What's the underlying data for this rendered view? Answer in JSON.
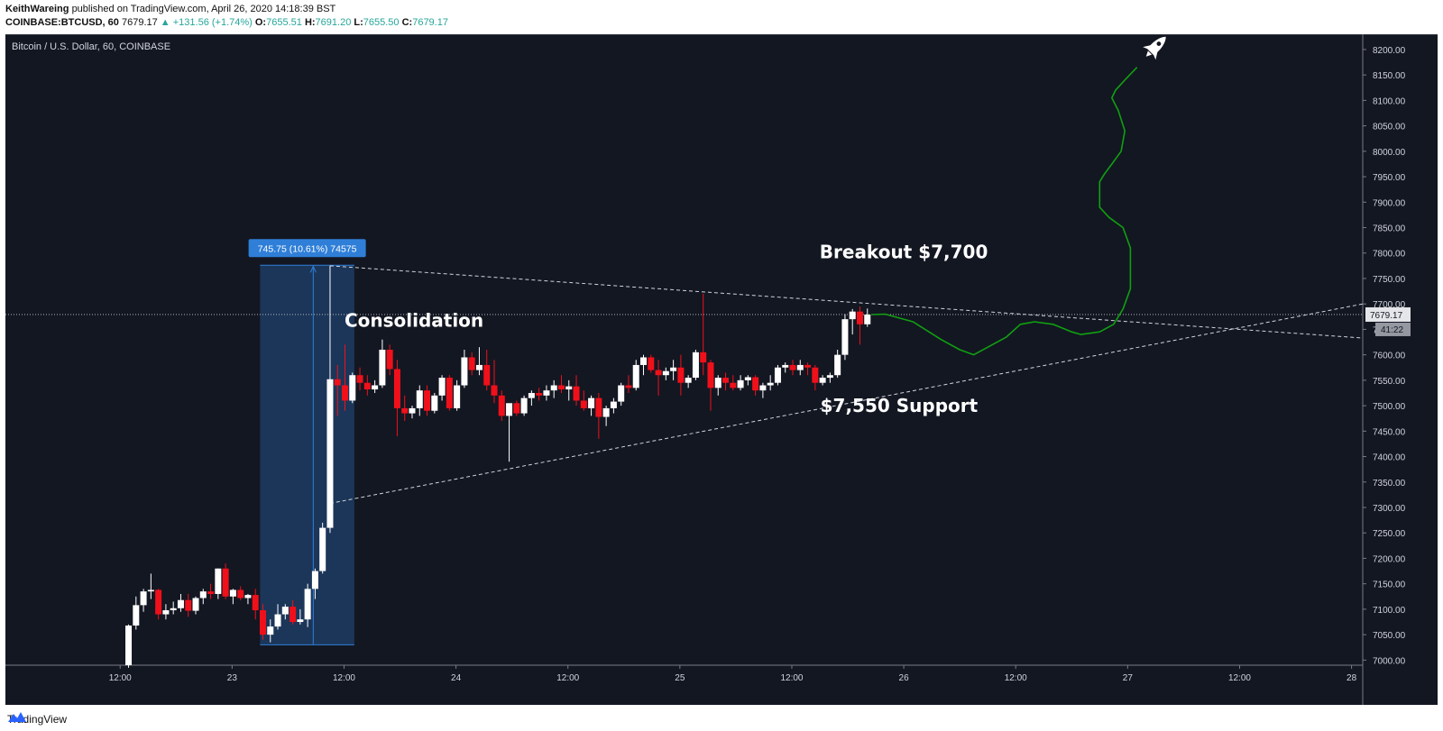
{
  "header": {
    "author": "KeithWareing",
    "published_text": "published on TradingView.com, April 26, 2020 14:18:39 BST",
    "symbol_line": {
      "symbol": "COINBASE:BTCUSD, 60",
      "last": "7679.17",
      "change": "▲ +131.56 (+1.74%)",
      "o_label": "O:",
      "o": "7655.51",
      "h_label": "H:",
      "h": "7691.20",
      "l_label": "L:",
      "l": "7655.50",
      "c_label": "C:",
      "c": "7679.17"
    }
  },
  "chart_title": "Bitcoin / U.S. Dollar, 60, COINBASE",
  "footer": {
    "brand": "TradingView"
  },
  "colors": {
    "background": "#131722",
    "up": "#ffffff",
    "down": "#f0101a",
    "projection": "#10a010",
    "measure_box": "#1e3a5f",
    "measure_label": "#2f7fd8"
  },
  "chart_data": {
    "type": "candlestick",
    "yaxis": {
      "ticks": [
        "8200.00",
        "8150.00",
        "8100.00",
        "8050.00",
        "8000.00",
        "7950.00",
        "7900.00",
        "7850.00",
        "7800.00",
        "7750.00",
        "7700.00",
        "7650.00",
        "7600.00",
        "7550.00",
        "7500.00",
        "7450.00",
        "7400.00",
        "7350.00",
        "7300.00",
        "7250.00",
        "7200.00",
        "7150.00",
        "7100.00",
        "7050.00",
        "7000.00"
      ],
      "range": [
        6990,
        8230
      ]
    },
    "xaxis": {
      "ticks": [
        "12:00",
        "23",
        "12:00",
        "24",
        "12:00",
        "25",
        "12:00",
        "26",
        "12:00",
        "27",
        "12:00",
        "28"
      ],
      "tick_hours": [
        0,
        12,
        24,
        36,
        48,
        60,
        72,
        84,
        96,
        108,
        120,
        132
      ],
      "range_hours": [
        -12.3,
        133.2
      ]
    },
    "price_label": "7679.17",
    "countdown_label": "41:22",
    "candles": [
      {
        "t": 0.9,
        "o": 6990,
        "h": 7070,
        "l": 6985,
        "c": 7068
      },
      {
        "t": 1.7,
        "o": 7068,
        "h": 7125,
        "l": 7060,
        "c": 7108
      },
      {
        "t": 2.5,
        "o": 7108,
        "h": 7140,
        "l": 7095,
        "c": 7135
      },
      {
        "t": 3.3,
        "o": 7135,
        "h": 7170,
        "l": 7120,
        "c": 7138
      },
      {
        "t": 4.1,
        "o": 7138,
        "h": 7140,
        "l": 7080,
        "c": 7090
      },
      {
        "t": 4.9,
        "o": 7090,
        "h": 7110,
        "l": 7080,
        "c": 7098
      },
      {
        "t": 5.7,
        "o": 7098,
        "h": 7115,
        "l": 7090,
        "c": 7102
      },
      {
        "t": 6.5,
        "o": 7102,
        "h": 7130,
        "l": 7095,
        "c": 7118
      },
      {
        "t": 7.3,
        "o": 7118,
        "h": 7130,
        "l": 7085,
        "c": 7097
      },
      {
        "t": 8.1,
        "o": 7097,
        "h": 7125,
        "l": 7090,
        "c": 7122
      },
      {
        "t": 8.9,
        "o": 7122,
        "h": 7140,
        "l": 7110,
        "c": 7135
      },
      {
        "t": 9.7,
        "o": 7135,
        "h": 7150,
        "l": 7120,
        "c": 7130
      },
      {
        "t": 10.5,
        "o": 7130,
        "h": 7180,
        "l": 7120,
        "c": 7180
      },
      {
        "t": 11.3,
        "o": 7180,
        "h": 7190,
        "l": 7120,
        "c": 7125
      },
      {
        "t": 12.1,
        "o": 7125,
        "h": 7140,
        "l": 7110,
        "c": 7138
      },
      {
        "t": 12.9,
        "o": 7138,
        "h": 7145,
        "l": 7118,
        "c": 7122
      },
      {
        "t": 13.7,
        "o": 7122,
        "h": 7130,
        "l": 7110,
        "c": 7128
      },
      {
        "t": 14.5,
        "o": 7128,
        "h": 7140,
        "l": 7080,
        "c": 7098
      },
      {
        "t": 15.3,
        "o": 7098,
        "h": 7110,
        "l": 7040,
        "c": 7050
      },
      {
        "t": 16.1,
        "o": 7050,
        "h": 7080,
        "l": 7035,
        "c": 7066
      },
      {
        "t": 16.9,
        "o": 7066,
        "h": 7110,
        "l": 7060,
        "c": 7090
      },
      {
        "t": 17.7,
        "o": 7090,
        "h": 7110,
        "l": 7080,
        "c": 7105
      },
      {
        "t": 18.5,
        "o": 7105,
        "h": 7118,
        "l": 7070,
        "c": 7075
      },
      {
        "t": 19.3,
        "o": 7075,
        "h": 7100,
        "l": 7070,
        "c": 7080
      },
      {
        "t": 20.1,
        "o": 7080,
        "h": 7150,
        "l": 7065,
        "c": 7140
      },
      {
        "t": 20.9,
        "o": 7140,
        "h": 7180,
        "l": 7120,
        "c": 7175
      },
      {
        "t": 21.7,
        "o": 7175,
        "h": 7270,
        "l": 7170,
        "c": 7260
      },
      {
        "t": 22.5,
        "o": 7260,
        "h": 7775,
        "l": 7250,
        "c": 7552
      },
      {
        "t": 23.3,
        "o": 7552,
        "h": 7580,
        "l": 7480,
        "c": 7540
      },
      {
        "t": 24.1,
        "o": 7540,
        "h": 7620,
        "l": 7490,
        "c": 7510
      },
      {
        "t": 24.9,
        "o": 7510,
        "h": 7565,
        "l": 7505,
        "c": 7560
      },
      {
        "t": 25.7,
        "o": 7560,
        "h": 7575,
        "l": 7530,
        "c": 7545
      },
      {
        "t": 26.5,
        "o": 7545,
        "h": 7560,
        "l": 7520,
        "c": 7532
      },
      {
        "t": 27.3,
        "o": 7532,
        "h": 7550,
        "l": 7525,
        "c": 7540
      },
      {
        "t": 28.1,
        "o": 7540,
        "h": 7630,
        "l": 7535,
        "c": 7610
      },
      {
        "t": 28.9,
        "o": 7610,
        "h": 7620,
        "l": 7560,
        "c": 7572
      },
      {
        "t": 29.7,
        "o": 7572,
        "h": 7590,
        "l": 7440,
        "c": 7495
      },
      {
        "t": 30.5,
        "o": 7495,
        "h": 7520,
        "l": 7470,
        "c": 7485
      },
      {
        "t": 31.3,
        "o": 7485,
        "h": 7500,
        "l": 7475,
        "c": 7495
      },
      {
        "t": 32.1,
        "o": 7495,
        "h": 7540,
        "l": 7480,
        "c": 7530
      },
      {
        "t": 32.9,
        "o": 7530,
        "h": 7540,
        "l": 7480,
        "c": 7490
      },
      {
        "t": 33.7,
        "o": 7490,
        "h": 7525,
        "l": 7485,
        "c": 7520
      },
      {
        "t": 34.5,
        "o": 7520,
        "h": 7560,
        "l": 7510,
        "c": 7555
      },
      {
        "t": 35.3,
        "o": 7555,
        "h": 7560,
        "l": 7490,
        "c": 7495
      },
      {
        "t": 36.1,
        "o": 7495,
        "h": 7550,
        "l": 7490,
        "c": 7540
      },
      {
        "t": 36.9,
        "o": 7540,
        "h": 7610,
        "l": 7535,
        "c": 7595
      },
      {
        "t": 37.7,
        "o": 7595,
        "h": 7605,
        "l": 7560,
        "c": 7570
      },
      {
        "t": 38.5,
        "o": 7570,
        "h": 7615,
        "l": 7560,
        "c": 7580
      },
      {
        "t": 39.3,
        "o": 7580,
        "h": 7610,
        "l": 7530,
        "c": 7540
      },
      {
        "t": 40.1,
        "o": 7540,
        "h": 7590,
        "l": 7505,
        "c": 7520
      },
      {
        "t": 40.9,
        "o": 7520,
        "h": 7530,
        "l": 7470,
        "c": 7480
      },
      {
        "t": 41.7,
        "o": 7480,
        "h": 7500,
        "l": 7390,
        "c": 7505
      },
      {
        "t": 42.5,
        "o": 7505,
        "h": 7510,
        "l": 7480,
        "c": 7485
      },
      {
        "t": 43.3,
        "o": 7485,
        "h": 7520,
        "l": 7480,
        "c": 7515
      },
      {
        "t": 44.1,
        "o": 7515,
        "h": 7530,
        "l": 7500,
        "c": 7525
      },
      {
        "t": 44.9,
        "o": 7525,
        "h": 7535,
        "l": 7510,
        "c": 7520
      },
      {
        "t": 45.7,
        "o": 7520,
        "h": 7540,
        "l": 7510,
        "c": 7530
      },
      {
        "t": 46.5,
        "o": 7530,
        "h": 7550,
        "l": 7515,
        "c": 7540
      },
      {
        "t": 47.3,
        "o": 7540,
        "h": 7560,
        "l": 7525,
        "c": 7532
      },
      {
        "t": 48.1,
        "o": 7532,
        "h": 7550,
        "l": 7510,
        "c": 7538
      },
      {
        "t": 48.9,
        "o": 7538,
        "h": 7560,
        "l": 7500,
        "c": 7510
      },
      {
        "t": 49.7,
        "o": 7510,
        "h": 7530,
        "l": 7490,
        "c": 7495
      },
      {
        "t": 50.5,
        "o": 7495,
        "h": 7520,
        "l": 7480,
        "c": 7515
      },
      {
        "t": 51.3,
        "o": 7515,
        "h": 7525,
        "l": 7435,
        "c": 7478
      },
      {
        "t": 52.1,
        "o": 7478,
        "h": 7500,
        "l": 7460,
        "c": 7495
      },
      {
        "t": 52.9,
        "o": 7495,
        "h": 7515,
        "l": 7485,
        "c": 7508
      },
      {
        "t": 53.7,
        "o": 7508,
        "h": 7545,
        "l": 7500,
        "c": 7540
      },
      {
        "t": 54.5,
        "o": 7540,
        "h": 7560,
        "l": 7525,
        "c": 7535
      },
      {
        "t": 55.3,
        "o": 7535,
        "h": 7590,
        "l": 7530,
        "c": 7580
      },
      {
        "t": 56.1,
        "o": 7580,
        "h": 7600,
        "l": 7560,
        "c": 7595
      },
      {
        "t": 56.9,
        "o": 7595,
        "h": 7600,
        "l": 7565,
        "c": 7570
      },
      {
        "t": 57.7,
        "o": 7570,
        "h": 7590,
        "l": 7520,
        "c": 7560
      },
      {
        "t": 58.5,
        "o": 7560,
        "h": 7575,
        "l": 7550,
        "c": 7568
      },
      {
        "t": 59.3,
        "o": 7568,
        "h": 7590,
        "l": 7550,
        "c": 7575
      },
      {
        "t": 60.1,
        "o": 7575,
        "h": 7600,
        "l": 7520,
        "c": 7545
      },
      {
        "t": 60.9,
        "o": 7545,
        "h": 7560,
        "l": 7535,
        "c": 7555
      },
      {
        "t": 61.7,
        "o": 7555,
        "h": 7610,
        "l": 7550,
        "c": 7605
      },
      {
        "t": 62.5,
        "o": 7605,
        "h": 7720,
        "l": 7560,
        "c": 7585
      },
      {
        "t": 63.3,
        "o": 7585,
        "h": 7590,
        "l": 7490,
        "c": 7535
      },
      {
        "t": 64.1,
        "o": 7535,
        "h": 7560,
        "l": 7520,
        "c": 7555
      },
      {
        "t": 64.9,
        "o": 7555,
        "h": 7565,
        "l": 7530,
        "c": 7545
      },
      {
        "t": 65.7,
        "o": 7545,
        "h": 7560,
        "l": 7530,
        "c": 7535
      },
      {
        "t": 66.5,
        "o": 7535,
        "h": 7560,
        "l": 7530,
        "c": 7550
      },
      {
        "t": 67.3,
        "o": 7550,
        "h": 7560,
        "l": 7540,
        "c": 7556
      },
      {
        "t": 68.1,
        "o": 7556,
        "h": 7560,
        "l": 7520,
        "c": 7530
      },
      {
        "t": 68.9,
        "o": 7530,
        "h": 7545,
        "l": 7515,
        "c": 7540
      },
      {
        "t": 69.7,
        "o": 7540,
        "h": 7560,
        "l": 7530,
        "c": 7545
      },
      {
        "t": 70.5,
        "o": 7545,
        "h": 7580,
        "l": 7540,
        "c": 7575
      },
      {
        "t": 71.3,
        "o": 7575,
        "h": 7585,
        "l": 7565,
        "c": 7580
      },
      {
        "t": 72.1,
        "o": 7580,
        "h": 7590,
        "l": 7560,
        "c": 7570
      },
      {
        "t": 72.9,
        "o": 7570,
        "h": 7590,
        "l": 7560,
        "c": 7580
      },
      {
        "t": 73.7,
        "o": 7580,
        "h": 7585,
        "l": 7560,
        "c": 7575
      },
      {
        "t": 74.5,
        "o": 7575,
        "h": 7580,
        "l": 7530,
        "c": 7545
      },
      {
        "t": 75.3,
        "o": 7545,
        "h": 7560,
        "l": 7540,
        "c": 7555
      },
      {
        "t": 76.1,
        "o": 7555,
        "h": 7565,
        "l": 7545,
        "c": 7560
      },
      {
        "t": 76.9,
        "o": 7560,
        "h": 7610,
        "l": 7555,
        "c": 7600
      },
      {
        "t": 77.7,
        "o": 7600,
        "h": 7680,
        "l": 7590,
        "c": 7670
      },
      {
        "t": 78.5,
        "o": 7670,
        "h": 7690,
        "l": 7640,
        "c": 7685
      },
      {
        "t": 79.3,
        "o": 7685,
        "h": 7695,
        "l": 7620,
        "c": 7660
      },
      {
        "t": 80.1,
        "o": 7660,
        "h": 7691,
        "l": 7655,
        "c": 7679
      }
    ],
    "measure_tool": {
      "label": "745.75 (10.61%) 74575",
      "t_start": 15.0,
      "t_end": 25.1,
      "price_low": 7030,
      "price_high": 7776,
      "arrow_t": 20.7
    },
    "trendlines": [
      {
        "name": "resistance",
        "t1": 22.5,
        "p1": 7775,
        "t2": 133.2,
        "p2": 7633
      },
      {
        "name": "support",
        "t1": 22.5,
        "p1": 7308,
        "t2": 133.2,
        "p2": 7700
      }
    ],
    "current_price_line": 7679.17,
    "projection_path": [
      [
        80.5,
        7679
      ],
      [
        82,
        7680
      ],
      [
        85,
        7665
      ],
      [
        88,
        7630
      ],
      [
        90,
        7610
      ],
      [
        91.5,
        7600
      ],
      [
        93,
        7615
      ],
      [
        95,
        7635
      ],
      [
        96.5,
        7660
      ],
      [
        98,
        7665
      ],
      [
        100,
        7660
      ],
      [
        102,
        7645
      ],
      [
        103,
        7640
      ],
      [
        105,
        7645
      ],
      [
        106.5,
        7660
      ],
      [
        107.5,
        7690
      ],
      [
        108.3,
        7730
      ],
      [
        108.3,
        7810
      ],
      [
        107.5,
        7850
      ],
      [
        106,
        7870
      ],
      [
        105,
        7890
      ],
      [
        105,
        7940
      ],
      [
        105.5,
        7955
      ],
      [
        106.3,
        7975
      ],
      [
        107.3,
        8000
      ],
      [
        107.7,
        8040
      ],
      [
        107,
        8080
      ],
      [
        106.3,
        8105
      ],
      [
        106.7,
        8120
      ],
      [
        107.7,
        8140
      ],
      [
        109,
        8165
      ]
    ],
    "annotations": [
      {
        "text": "Consolidation",
        "t": 31.5,
        "p": 7655
      },
      {
        "text": "Breakout $7,700",
        "t": 84.0,
        "p": 7790
      },
      {
        "text": "$7,550 Support",
        "t": 83.5,
        "p": 7488
      }
    ],
    "rocket": {
      "t": 111.0,
      "p": 8205
    }
  }
}
